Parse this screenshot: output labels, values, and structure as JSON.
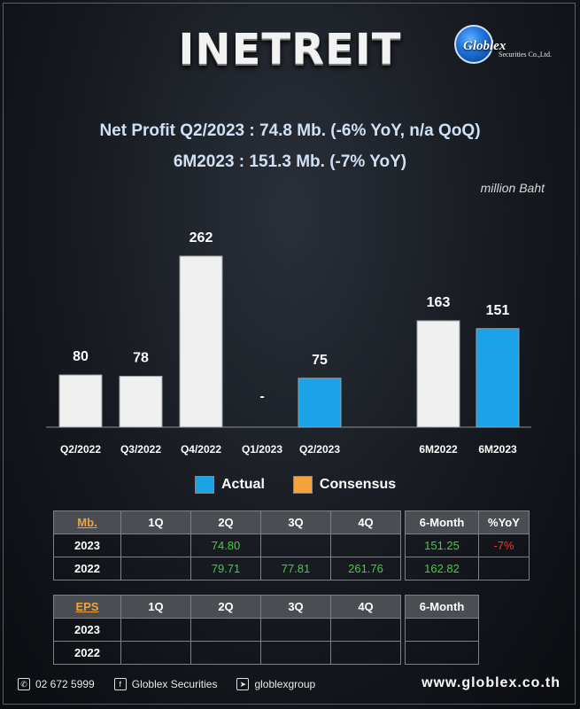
{
  "title": "INETREIT",
  "logo": {
    "name": "Globlex",
    "sub": "Securities Co.,Ltd."
  },
  "headline1": "Net Profit  Q2/2023 : 74.8 Mb. (-6% YoY,  n/a  QoQ)",
  "headline2": "6M2023 : 151.3 Mb. (-7% YoY)",
  "unit": "million Baht",
  "colors": {
    "actual": "#1aa3e8",
    "history": "#f0f0f0",
    "consensus": "#f7a23b"
  },
  "chart_data": {
    "type": "bar",
    "categories": [
      "Q2/2022",
      "Q3/2022",
      "Q4/2022",
      "Q1/2023",
      "Q2/2023",
      "6M2022",
      "6M2023"
    ],
    "values": [
      80,
      78,
      262,
      null,
      75,
      163,
      151
    ],
    "labels": [
      "80",
      "78",
      "262",
      "-",
      "75",
      "163",
      "151"
    ],
    "kind": [
      "history",
      "history",
      "history",
      "history",
      "actual",
      "history",
      "actual"
    ],
    "ylim": [
      0,
      300
    ],
    "legend": [
      "Actual",
      "Consensus"
    ]
  },
  "legend": {
    "actual": "Actual",
    "consensus": "Consensus"
  },
  "table1": {
    "header": [
      "Mb.",
      "1Q",
      "2Q",
      "3Q",
      "4Q"
    ],
    "side_header": [
      "6-Month",
      "%YoY"
    ],
    "rows": [
      {
        "year": "2023",
        "q": [
          "",
          "74.80",
          "",
          ""
        ],
        "m6": "151.25",
        "yoy": "-7%"
      },
      {
        "year": "2022",
        "q": [
          "",
          "79.71",
          "77.81",
          "261.76"
        ],
        "m6": "162.82",
        "yoy": ""
      }
    ]
  },
  "table2": {
    "header": [
      "EPS",
      "1Q",
      "2Q",
      "3Q",
      "4Q"
    ],
    "side_header": [
      "6-Month"
    ],
    "rows": [
      {
        "year": "2023",
        "q": [
          "",
          "",
          "",
          ""
        ],
        "m6": ""
      },
      {
        "year": "2022",
        "q": [
          "",
          "",
          "",
          ""
        ],
        "m6": ""
      }
    ]
  },
  "footer": {
    "phone": "02 672 5999",
    "facebook": "Globlex Securities",
    "telegram": "globlexgroup",
    "website": "www.globlex.co.th"
  }
}
